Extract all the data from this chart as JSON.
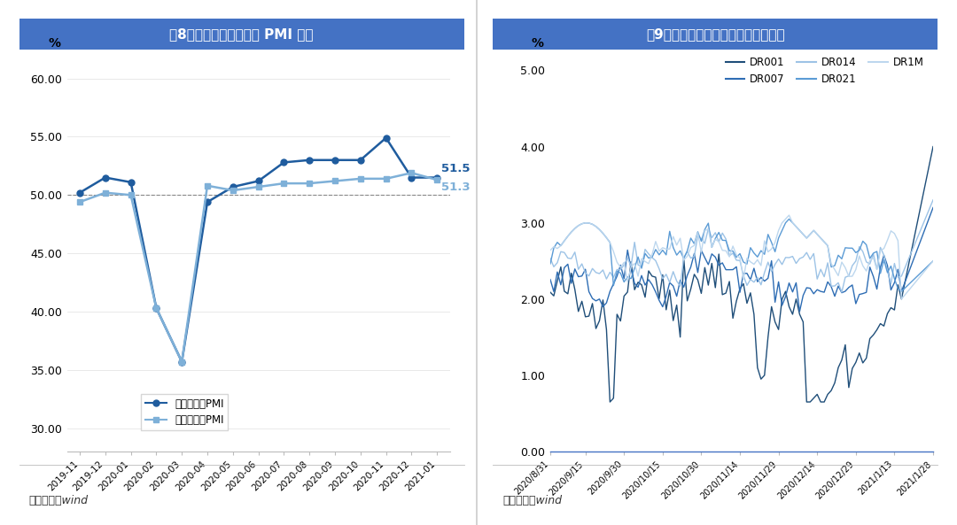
{
  "chart1_title": "图8：财新和官方制造业 PMI 走势",
  "chart2_title": "图9：存款类机构质押式回购利率走势",
  "chart1_ylim": [
    28.0,
    62.0
  ],
  "chart1_yticks": [
    30.0,
    35.0,
    40.0,
    45.0,
    50.0,
    55.0,
    60.0
  ],
  "chart1_labels": [
    "2019-11",
    "2019-12",
    "2020-01",
    "2020-02",
    "2020-03",
    "2020-04",
    "2020-05",
    "2020-06",
    "2020-07",
    "2020-08",
    "2020-09",
    "2020-10",
    "2020-11",
    "2020-12",
    "2021-01"
  ],
  "chart1_caixin": [
    50.2,
    51.5,
    51.1,
    40.3,
    35.7,
    49.4,
    50.7,
    51.2,
    52.8,
    53.0,
    53.0,
    53.0,
    54.9,
    51.5,
    51.5
  ],
  "chart1_official": [
    49.4,
    50.2,
    50.0,
    40.3,
    35.7,
    50.8,
    50.4,
    50.7,
    51.0,
    51.0,
    51.2,
    51.4,
    51.4,
    51.9,
    51.3
  ],
  "chart1_caixin_color": "#1F5C9E",
  "chart1_official_color": "#7EB0D8",
  "chart1_caixin_label": "财新制造业PMI",
  "chart1_official_label": "官方制造业PMI",
  "chart1_last_caixin": "51.5",
  "chart1_last_official": "51.3",
  "chart2_ylim": [
    0.0,
    5.2
  ],
  "chart2_yticks": [
    0.0,
    1.0,
    2.0,
    3.0,
    4.0,
    5.0
  ],
  "chart2_xtick_labels": [
    "2020/8/31",
    "2020/9/15",
    "2020/9/30",
    "2020/10/15",
    "2020/10/30",
    "2020/11/14",
    "2020/11/29",
    "2020/12/14",
    "2020/12/29",
    "2021/1/13",
    "2021/1/28"
  ],
  "header_color": "#4472C4",
  "header_text_color": "#FFFFFF",
  "background_color": "#FFFFFF",
  "source_text": "资料来源：wind",
  "dr001_color": "#1F4E79",
  "dr007_color": "#2E6DB4",
  "dr014_color": "#9DC3E6",
  "dr021_color": "#5B9BD5",
  "dr1m_color": "#BDD7EE"
}
